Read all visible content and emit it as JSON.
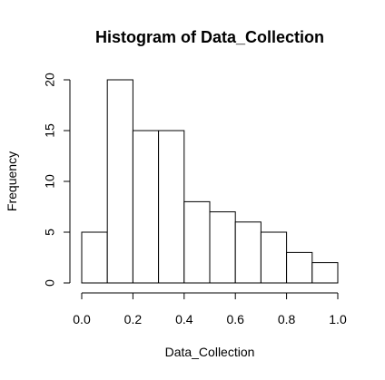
{
  "chart_data": {
    "type": "bar",
    "title": "Histogram of Data_Collection",
    "xlabel": "Data_Collection",
    "ylabel": "Frequency",
    "bins": [
      {
        "start": 0.0,
        "end": 0.1,
        "count": 5
      },
      {
        "start": 0.1,
        "end": 0.2,
        "count": 20
      },
      {
        "start": 0.2,
        "end": 0.3,
        "count": 15
      },
      {
        "start": 0.3,
        "end": 0.4,
        "count": 15
      },
      {
        "start": 0.4,
        "end": 0.5,
        "count": 8
      },
      {
        "start": 0.5,
        "end": 0.6,
        "count": 7
      },
      {
        "start": 0.6,
        "end": 0.7,
        "count": 6
      },
      {
        "start": 0.7,
        "end": 0.8,
        "count": 5
      },
      {
        "start": 0.8,
        "end": 0.9,
        "count": 3
      },
      {
        "start": 0.9,
        "end": 1.0,
        "count": 2
      }
    ],
    "xlim": [
      0.0,
      1.0
    ],
    "ylim": [
      0,
      20
    ],
    "x_ticks": [
      0.0,
      0.2,
      0.4,
      0.6,
      0.8,
      1.0
    ],
    "x_tick_labels": [
      "0.0",
      "0.2",
      "0.4",
      "0.6",
      "0.8",
      "1.0"
    ],
    "y_ticks": [
      0,
      5,
      10,
      15,
      20
    ],
    "y_tick_labels": [
      "0",
      "5",
      "10",
      "15",
      "20"
    ],
    "grid": false,
    "legend": "none",
    "colors": {
      "bar_fill": "#ffffff",
      "bar_stroke": "#000000",
      "axis": "#000000",
      "text": "#000000"
    }
  }
}
